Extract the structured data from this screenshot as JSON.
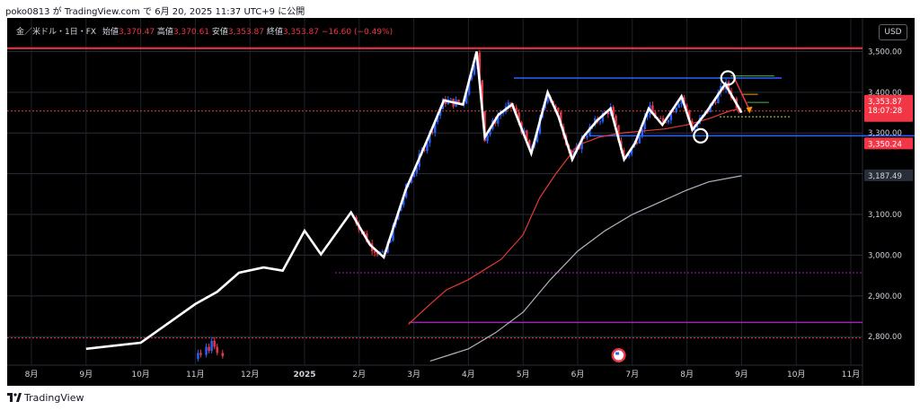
{
  "header": {
    "text": "poko0813 が TradingView.com で 6月 20, 2025 11:37 UTC+9 に公開"
  },
  "legend": {
    "symbol": "金／米ドル・1日・FX",
    "open_label": "始値",
    "open_value": "3,370.47",
    "high_label": "高値",
    "high_value": "3,370.61",
    "low_label": "安値",
    "low_value": "3,353.87",
    "close_label": "終値",
    "close_value": "3,353.87",
    "change": "−16.60 (−0.49%)"
  },
  "currency_button": "USD",
  "colors": {
    "background": "#000000",
    "up": "#2962ff",
    "down": "#f23645",
    "zigzag": "#ffffff",
    "ma_short": "#e53935",
    "ma_long": "#b2b5be",
    "hline_red": "#f23645",
    "hline_blue": "#2962ff",
    "hline_purple": "#9c27b0"
  },
  "price_badges": {
    "last_price": "3,353.87",
    "countdown": "18:07:28",
    "second_price": "3,350.24",
    "ma_value": "3,187.49"
  },
  "chart_data": {
    "type": "candlestick",
    "title": "",
    "symbol": "金／米ドル・1日・FX",
    "y_ticks": [
      "3,500.00",
      "3,400.00",
      "3,300.00",
      "3,200.00",
      "3,100.00",
      "3,000.00",
      "2,900.00",
      "2,800.00"
    ],
    "x_ticks": [
      "8月",
      "9月",
      "10月",
      "11月",
      "12月",
      "2025",
      "2月",
      "3月",
      "4月",
      "5月",
      "6月",
      "7月",
      "8月",
      "9月",
      "10月",
      "11月"
    ],
    "ylim": [
      2730,
      3545
    ],
    "horizontal_lines": [
      {
        "price": 3508,
        "color": "red"
      },
      {
        "price": 3435,
        "color": "blue"
      },
      {
        "price": 3293,
        "color": "blue"
      },
      {
        "price": 3353.87,
        "color": "red",
        "style": "dotted"
      },
      {
        "price": 2957,
        "color": "purple",
        "style": "dotted"
      },
      {
        "price": 2835,
        "color": "purple"
      },
      {
        "price": 2797,
        "color": "red",
        "style": "dotted"
      }
    ],
    "zigzag_points": [
      [
        1,
        2770
      ],
      [
        2,
        2785
      ],
      [
        3,
        2880
      ],
      [
        3.4,
        2910
      ],
      [
        3.8,
        2957
      ],
      [
        4.25,
        2970
      ],
      [
        4.6,
        2962
      ],
      [
        5.0,
        3060
      ],
      [
        5.3,
        3002
      ],
      [
        5.85,
        3105
      ],
      [
        6.2,
        3025
      ],
      [
        6.45,
        2995
      ],
      [
        6.85,
        3160
      ],
      [
        7.3,
        3300
      ],
      [
        7.55,
        3380
      ],
      [
        7.9,
        3370
      ],
      [
        8.15,
        3500
      ],
      [
        8.3,
        3290
      ],
      [
        8.55,
        3345
      ],
      [
        8.8,
        3370
      ],
      [
        9.15,
        3250
      ],
      [
        9.45,
        3400
      ],
      [
        9.65,
        3340
      ],
      [
        9.9,
        3235
      ],
      [
        10.1,
        3290
      ],
      [
        10.35,
        3330
      ],
      [
        10.6,
        3360
      ],
      [
        10.85,
        3235
      ],
      [
        11.05,
        3275
      ],
      [
        11.3,
        3360
      ],
      [
        11.55,
        3320
      ],
      [
        11.9,
        3390
      ],
      [
        12.1,
        3308
      ],
      [
        12.35,
        3350
      ],
      [
        12.7,
        3420
      ],
      [
        13.0,
        3350
      ]
    ],
    "circles": [
      [
        12.75,
        3435
      ],
      [
        12.25,
        3293
      ]
    ]
  }
}
